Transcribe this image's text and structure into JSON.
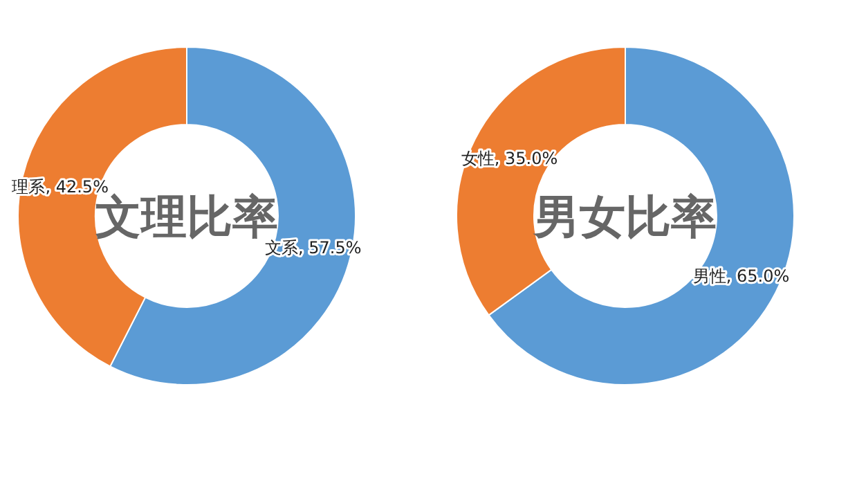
{
  "chart_data": [
    {
      "type": "donut",
      "title": "文理比率",
      "categories": [
        "文系",
        "理系"
      ],
      "values": [
        57.5,
        42.5
      ],
      "colors": [
        "#5b9bd5",
        "#ed7d31"
      ],
      "value_labels": [
        "57.5%",
        "42.5%"
      ]
    },
    {
      "type": "donut",
      "title": "男女比率",
      "categories": [
        "男性",
        "女性"
      ],
      "values": [
        65.0,
        35.0
      ],
      "colors": [
        "#5b9bd5",
        "#ed7d31"
      ],
      "value_labels": [
        "65.0%",
        "35.0%"
      ]
    }
  ]
}
